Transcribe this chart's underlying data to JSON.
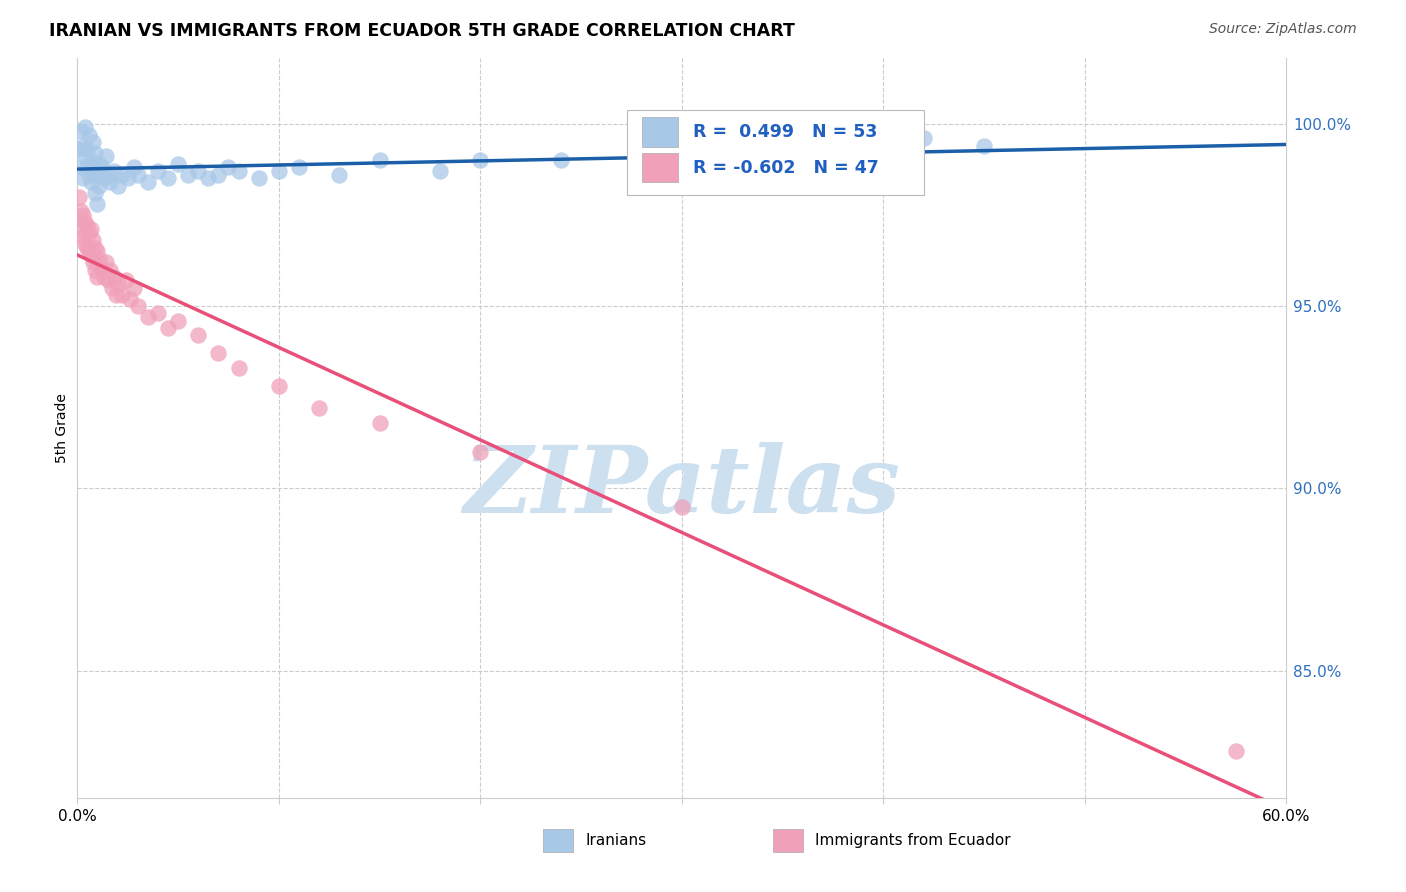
{
  "title": "IRANIAN VS IMMIGRANTS FROM ECUADOR 5TH GRADE CORRELATION CHART",
  "source": "Source: ZipAtlas.com",
  "ylabel": "5th Grade",
  "xmin": 0.0,
  "xmax": 0.6,
  "ymin": 0.815,
  "ymax": 1.018,
  "yticks": [
    0.85,
    0.9,
    0.95,
    1.0
  ],
  "ytick_labels": [
    "85.0%",
    "90.0%",
    "95.0%",
    "100.0%"
  ],
  "iranian_R": 0.499,
  "iranian_N": 53,
  "ecuador_R": -0.602,
  "ecuador_N": 47,
  "iranian_color": "#a8c8e8",
  "ecuador_color": "#f0a0b8",
  "iranian_line_color": "#1a5fa8",
  "ecuador_line_color": "#e8507a",
  "watermark_text": "ZIPatlas",
  "watermark_color": "#cce0f0",
  "legend_label_iranian": "Iranians",
  "legend_label_ecuador": "Immigrants from Ecuador",
  "iranian_scatter_x": [
    0.001,
    0.002,
    0.002,
    0.003,
    0.003,
    0.004,
    0.004,
    0.005,
    0.005,
    0.006,
    0.006,
    0.007,
    0.007,
    0.008,
    0.008,
    0.009,
    0.009,
    0.01,
    0.01,
    0.011,
    0.011,
    0.012,
    0.013,
    0.014,
    0.015,
    0.016,
    0.018,
    0.02,
    0.022,
    0.025,
    0.028,
    0.03,
    0.035,
    0.04,
    0.045,
    0.05,
    0.055,
    0.06,
    0.065,
    0.07,
    0.075,
    0.08,
    0.09,
    0.1,
    0.11,
    0.13,
    0.15,
    0.18,
    0.2,
    0.24,
    0.28,
    0.42,
    0.45
  ],
  "iranian_scatter_y": [
    0.993,
    0.998,
    0.988,
    0.994,
    0.985,
    0.991,
    0.999,
    0.988,
    0.993,
    0.986,
    0.997,
    0.99,
    0.984,
    0.995,
    0.988,
    0.992,
    0.981,
    0.986,
    0.978,
    0.989,
    0.983,
    0.988,
    0.985,
    0.991,
    0.986,
    0.984,
    0.987,
    0.983,
    0.986,
    0.985,
    0.988,
    0.986,
    0.984,
    0.987,
    0.985,
    0.989,
    0.986,
    0.987,
    0.985,
    0.986,
    0.988,
    0.987,
    0.985,
    0.987,
    0.988,
    0.986,
    0.99,
    0.987,
    0.99,
    0.99,
    0.992,
    0.996,
    0.994
  ],
  "ecuador_scatter_x": [
    0.001,
    0.002,
    0.002,
    0.003,
    0.003,
    0.004,
    0.004,
    0.005,
    0.005,
    0.006,
    0.006,
    0.007,
    0.007,
    0.008,
    0.008,
    0.009,
    0.009,
    0.01,
    0.01,
    0.011,
    0.012,
    0.013,
    0.014,
    0.015,
    0.016,
    0.017,
    0.018,
    0.019,
    0.02,
    0.022,
    0.024,
    0.026,
    0.028,
    0.03,
    0.035,
    0.04,
    0.045,
    0.05,
    0.06,
    0.07,
    0.08,
    0.1,
    0.12,
    0.15,
    0.2,
    0.3,
    0.575
  ],
  "ecuador_scatter_y": [
    0.98,
    0.976,
    0.971,
    0.975,
    0.969,
    0.973,
    0.967,
    0.972,
    0.966,
    0.97,
    0.965,
    0.971,
    0.964,
    0.968,
    0.962,
    0.966,
    0.96,
    0.965,
    0.958,
    0.963,
    0.96,
    0.958,
    0.962,
    0.957,
    0.96,
    0.955,
    0.958,
    0.953,
    0.956,
    0.953,
    0.957,
    0.952,
    0.955,
    0.95,
    0.947,
    0.948,
    0.944,
    0.946,
    0.942,
    0.937,
    0.933,
    0.928,
    0.922,
    0.918,
    0.91,
    0.895,
    0.828
  ]
}
